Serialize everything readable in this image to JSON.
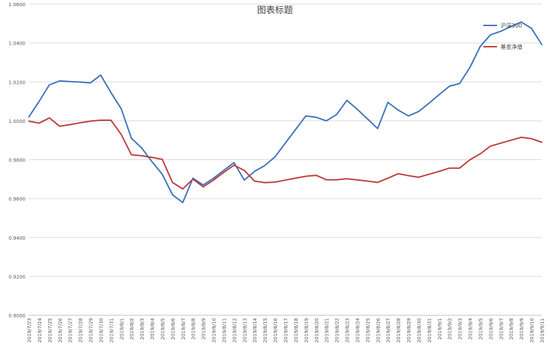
{
  "chart_data": {
    "type": "line",
    "title": "图表标题",
    "xlabel": "",
    "ylabel": "",
    "ylim": [
      0.9,
      1.06
    ],
    "y_ticks": [
      "0.9000",
      "0.9200",
      "0.9400",
      "0.9600",
      "0.9800",
      "1.0000",
      "1.0200",
      "1.0400",
      "1.0600"
    ],
    "grid": true,
    "legend_position": "top-right",
    "categories": [
      "2019/7/23",
      "2019/7/24",
      "2019/7/25",
      "2019/7/26",
      "2019/7/27",
      "2019/7/28",
      "2019/7/29",
      "2019/7/30",
      "2019/7/31",
      "2019/8/1",
      "2019/8/2",
      "2019/8/3",
      "2019/8/4",
      "2019/8/5",
      "2019/8/6",
      "2019/8/7",
      "2019/8/8",
      "2019/8/9",
      "2019/8/10",
      "2019/8/11",
      "2019/8/12",
      "2019/8/13",
      "2019/8/14",
      "2019/8/15",
      "2019/8/16",
      "2019/8/17",
      "2019/8/18",
      "2019/8/19",
      "2019/8/20",
      "2019/8/21",
      "2019/8/22",
      "2019/8/23",
      "2019/8/24",
      "2019/8/25",
      "2019/8/26",
      "2019/8/27",
      "2019/8/28",
      "2019/8/29",
      "2019/8/30",
      "2019/8/31",
      "2019/9/1",
      "2019/9/2",
      "2019/9/3",
      "2019/9/4",
      "2019/9/5",
      "2019/9/6",
      "2019/9/7",
      "2019/9/8",
      "2019/9/9",
      "2019/9/10",
      "2019/9/11"
    ],
    "series": [
      {
        "name": "沪深300",
        "color": "#3b74bb",
        "values": [
          1.002,
          1.01,
          1.0185,
          1.0205,
          1.0202,
          1.0199,
          1.0195,
          1.0235,
          1.0145,
          1.0062,
          0.991,
          0.986,
          0.979,
          0.9725,
          0.962,
          0.958,
          0.9705,
          0.967,
          0.9705,
          0.9745,
          0.9785,
          0.9695,
          0.974,
          0.977,
          0.9815,
          0.9885,
          0.9955,
          1.0025,
          1.0018,
          1.0,
          1.0032,
          1.0105,
          1.006,
          1.001,
          0.996,
          1.0095,
          1.0055,
          1.0025,
          1.0048,
          1.009,
          1.0135,
          1.0178,
          1.0192,
          1.0275,
          1.0382,
          1.0442,
          1.046,
          1.0485,
          1.0508,
          1.0475,
          1.0392
        ]
      },
      {
        "name": "基金净值",
        "color": "#bf3b3b",
        "values": [
          0.9998,
          0.9988,
          1.0015,
          0.9972,
          0.998,
          0.999,
          0.9998,
          1.0003,
          1.0003,
          0.993,
          0.9825,
          0.982,
          0.9812,
          0.9802,
          0.9683,
          0.965,
          0.97,
          0.966,
          0.9695,
          0.9735,
          0.9772,
          0.9745,
          0.969,
          0.9682,
          0.9685,
          0.9695,
          0.9705,
          0.9715,
          0.972,
          0.9697,
          0.9697,
          0.9702,
          0.9696,
          0.969,
          0.9683,
          0.9705,
          0.9728,
          0.9718,
          0.971,
          0.9725,
          0.974,
          0.9757,
          0.9757,
          0.98,
          0.983,
          0.987,
          0.9885,
          0.99,
          0.9915,
          0.9908,
          0.989
        ]
      }
    ]
  }
}
